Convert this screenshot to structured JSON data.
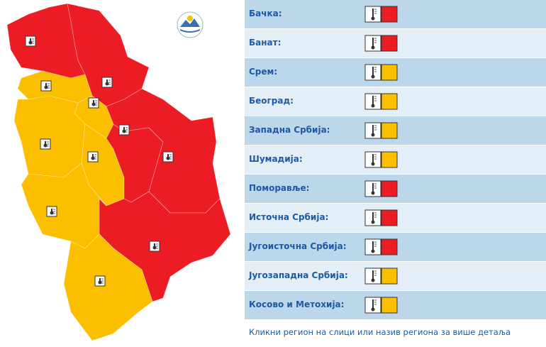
{
  "regions": [
    {
      "name": "Бачка:",
      "color": "#ec1c24"
    },
    {
      "name": "Банат:",
      "color": "#ec1c24"
    },
    {
      "name": "Срем:",
      "color": "#fbbf00"
    },
    {
      "name": "Београд:",
      "color": "#fbbf00"
    },
    {
      "name": "Западна Србија:",
      "color": "#fbbf00"
    },
    {
      "name": "Шумадија:",
      "color": "#fbbf00"
    },
    {
      "name": "Поморавље:",
      "color": "#ec1c24"
    },
    {
      "name": "Источна Србија:",
      "color": "#ec1c24"
    },
    {
      "name": "Југоисточна Србија:",
      "color": "#ec1c24"
    },
    {
      "name": "Југозападна Србија:",
      "color": "#fbbf00"
    },
    {
      "name": "Косово и Метохија:",
      "color": "#fbbf00"
    }
  ],
  "footer": "Кликни регион на слици или назив региона за више детаља"
}
